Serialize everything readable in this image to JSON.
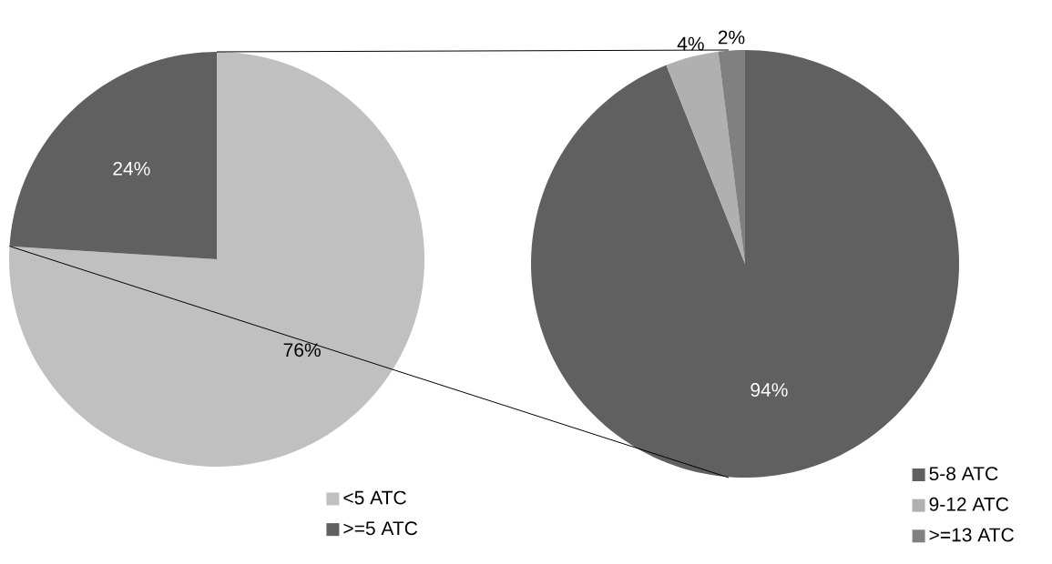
{
  "chart_data": [
    {
      "type": "pie",
      "categories": [
        "<5 ATC",
        ">=5 ATC"
      ],
      "values": [
        76,
        24
      ],
      "colors": [
        "#c0c0c0",
        "#606060"
      ],
      "value_labels": [
        "76%",
        "24%"
      ],
      "legend": "bottom"
    },
    {
      "type": "pie",
      "categories": [
        "5-8 ATC",
        "9-12 ATC",
        ">=13 ATC"
      ],
      "values": [
        94,
        4,
        2
      ],
      "colors": [
        "#606060",
        "#b0b0b0",
        "#808080"
      ],
      "value_labels": [
        "94%",
        "4%",
        "2%"
      ],
      "legend": "bottom right"
    }
  ]
}
